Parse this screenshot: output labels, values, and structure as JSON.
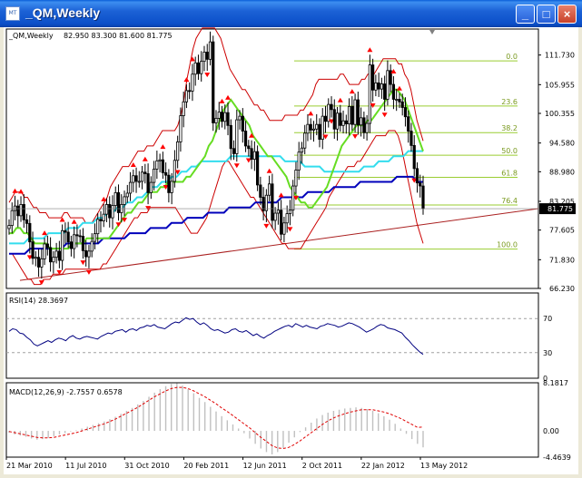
{
  "window": {
    "title": "_QM,Weekly",
    "icon": "chart-window-icon",
    "icon_caption": "MT",
    "buttons": [
      {
        "name": "minimize-button",
        "glyph": "_"
      },
      {
        "name": "maximize-button",
        "glyph": "□"
      },
      {
        "name": "close-button",
        "glyph": "×"
      }
    ]
  },
  "colors": {
    "bollinger": "#cc0000",
    "fib": "#9acd32",
    "ma_short": "#66dd22",
    "ma_mid": "#33ddee",
    "ma_long": "#0000bb",
    "candle": "#000000",
    "fractal": "#ff0000",
    "trendline": "#aa2020",
    "rsi": "#000080",
    "macd_hist": "#c0c0c0",
    "macd_signal": "#e00000",
    "price_tag_bg": "#000000",
    "price_tag_fg": "#ffffff"
  },
  "chart_data": [
    {
      "type": "candlestick",
      "title": "_QM,Weekly",
      "ohlc_label": "82.950 83.300 81.600 81.775",
      "ylim": [
        66.23,
        116.8
      ],
      "y_ticks": [
        "111.730",
        "105.955",
        "100.355",
        "94.580",
        "88.980",
        "83.205",
        "77.605",
        "71.830",
        "66.230"
      ],
      "last_price_label": "81.775",
      "last_price": 81.775,
      "x_ticks": [
        "21 Mar 2010",
        "11 Jul 2010",
        "31 Oct 2010",
        "20 Feb 2011",
        "12 Jun 2011",
        "2 Oct 2011",
        "22 Jan 2012",
        "13 May 2012"
      ],
      "fib_levels": [
        {
          "label": "0.0",
          "price": 110.6
        },
        {
          "label": "23.6",
          "price": 101.8
        },
        {
          "label": "38.2",
          "price": 96.6
        },
        {
          "label": "50.0",
          "price": 92.2
        },
        {
          "label": "61.8",
          "price": 87.9
        },
        {
          "label": "76.4",
          "price": 82.5
        },
        {
          "label": "100.0",
          "price": 73.9
        }
      ],
      "bars_close": [
        78.5,
        81.4,
        82.3,
        80.4,
        82.6,
        79.6,
        78.9,
        75.3,
        72.1,
        72.3,
        70.4,
        72.0,
        74.9,
        74.2,
        71.4,
        72.3,
        73.5,
        71.7,
        77.5,
        77.2,
        75.3,
        74.0,
        76.7,
        76.5,
        76.4,
        73.6,
        72.4,
        73.5,
        75.4,
        76.9,
        79.7,
        79.4,
        80.7,
        82.6,
        80.0,
        82.4,
        84.9,
        81.0,
        82.6,
        84.1,
        84.8,
        86.9,
        88.2,
        87.1,
        87.1,
        88.9,
        88.6,
        84.9,
        86.9,
        89.5,
        91.1,
        91.3,
        88.8,
        88.3,
        84.9,
        87.1,
        91.2,
        94.8,
        99.9,
        102.6,
        104.8,
        104.7,
        108.0,
        110.2,
        108.1,
        110.5,
        112.3,
        110.9,
        114.3,
        98.5,
        99.4,
        100.6,
        98.8,
        100.5,
        98.0,
        93.5,
        92.5,
        99.1,
        99.8,
        96.9,
        94.0,
        93.5,
        91.4,
        92.9,
        86.4,
        84.0,
        81.4,
        84.4,
        86.6,
        79.5,
        80.9,
        81.5,
        76.8,
        79.0,
        80.8,
        81.5,
        86.2,
        89.3,
        92.8,
        93.6,
        96.5,
        98.2,
        97.1,
        97.3,
        98.2,
        95.3,
        99.8,
        98.8,
        102.1,
        101.1,
        97.3,
        100.4,
        98.0,
        98.9,
        98.3,
        101.7,
        98.2,
        103.0,
        98.1,
        99.5,
        96.6,
        98.4,
        109.8,
        104.9,
        106.3,
        105.1,
        106.1,
        103.1,
        108.7,
        106.0,
        103.1,
        103.1,
        102.6,
        101.5,
        99.7,
        96.9,
        94.1,
        89.6,
        86.8,
        86.2,
        81.8
      ],
      "bollinger_upper": [
        83,
        84,
        85,
        85,
        85,
        84,
        84,
        83,
        82,
        82,
        81,
        81,
        81,
        80,
        80,
        80,
        80,
        80,
        81,
        81,
        80,
        80,
        80,
        80,
        80,
        79,
        79,
        79,
        80,
        81,
        82,
        83,
        84,
        86,
        87,
        88,
        89,
        90,
        90,
        90,
        91,
        92,
        93,
        93,
        93,
        94,
        94,
        94,
        95,
        96,
        97,
        97,
        97,
        97,
        97,
        98,
        100,
        103,
        107,
        110,
        113,
        115,
        116,
        117,
        117,
        117,
        117,
        117,
        116,
        115,
        113,
        111,
        109,
        108,
        107,
        106,
        105,
        105,
        104,
        103,
        102,
        102,
        101,
        101,
        100,
        99,
        99,
        99,
        99,
        99,
        100,
        100,
        100,
        100,
        100,
        101,
        101,
        102,
        103,
        104,
        106,
        107,
        107,
        107,
        107,
        107,
        107,
        107,
        108,
        108,
        107,
        106,
        106,
        106,
        106,
        107,
        107,
        108,
        108,
        108,
        109,
        110,
        111,
        111,
        111,
        111,
        111,
        110,
        110,
        108,
        107,
        105,
        102,
        99,
        97,
        95
      ],
      "bollinger_lower": [
        73,
        73,
        72,
        71,
        70,
        69,
        68,
        68,
        67,
        67,
        67,
        68,
        68,
        68,
        69,
        69,
        69,
        69,
        70,
        70,
        70,
        70,
        70,
        70,
        70,
        70,
        70,
        70,
        70,
        70,
        71,
        71,
        72,
        73,
        74,
        75,
        76,
        77,
        78,
        79,
        80,
        80,
        81,
        81,
        81,
        82,
        82,
        82,
        82,
        82,
        82,
        82,
        82,
        82,
        81,
        80,
        79,
        78,
        77,
        77,
        77,
        78,
        79,
        80,
        82,
        84,
        86,
        88,
        90,
        91,
        91,
        90,
        89,
        88,
        87,
        86,
        85,
        84,
        84,
        83,
        82,
        81,
        80,
        79,
        78,
        77,
        76,
        75,
        75,
        74,
        74,
        74,
        74,
        74,
        75,
        76,
        77,
        78,
        79,
        80,
        81,
        82,
        84,
        85,
        86,
        87,
        88,
        89,
        90,
        90,
        90,
        91,
        91,
        92,
        93,
        94,
        95,
        96,
        96,
        96,
        96,
        97,
        97,
        97,
        96,
        94,
        91,
        88,
        85,
        82,
        79,
        77,
        75
      ],
      "ma_short": [
        77,
        77,
        78,
        78,
        77,
        77,
        76,
        75,
        75,
        75,
        75,
        74,
        74,
        74,
        74,
        74,
        74,
        75,
        75,
        75,
        75,
        76,
        76,
        76,
        76,
        76,
        76,
        76,
        77,
        78,
        79,
        80,
        81,
        81,
        82,
        83,
        83,
        84,
        85,
        85,
        85,
        86,
        86,
        87,
        87,
        87,
        87,
        87,
        88,
        88,
        89,
        90,
        91,
        92,
        94,
        95,
        97,
        99,
        101,
        102,
        103,
        102,
        101,
        100,
        99,
        98,
        96,
        95,
        94,
        93,
        92,
        92,
        91,
        90,
        89,
        88,
        86,
        85,
        84,
        83,
        83,
        82,
        82,
        83,
        84,
        85,
        86,
        88,
        90,
        92,
        94,
        95,
        96,
        97,
        98,
        98,
        98,
        99,
        99,
        100,
        101,
        102,
        103,
        104,
        105,
        105,
        104,
        103,
        101,
        99,
        97,
        95,
        93
      ],
      "ma_mid": [
        75,
        75,
        75,
        75,
        76,
        76,
        76,
        76,
        77,
        77,
        77,
        77,
        78,
        78,
        78,
        79,
        79,
        79,
        80,
        80,
        81,
        81,
        82,
        82,
        83,
        83,
        84,
        84,
        85,
        86,
        86,
        87,
        87,
        88,
        88,
        89,
        89,
        90,
        90,
        91,
        91,
        91,
        91,
        91,
        91,
        92,
        92,
        92,
        92,
        92,
        92,
        92,
        92,
        92,
        92,
        92,
        91,
        91,
        91,
        91,
        90,
        90,
        90,
        90,
        89,
        89,
        89,
        89,
        89,
        89,
        89,
        89,
        90,
        90,
        90,
        91,
        91,
        91,
        92,
        92,
        92,
        93,
        93,
        93,
        93
      ],
      "ma_long": [
        73,
        73,
        73,
        73,
        74,
        74,
        74,
        74,
        74,
        74,
        74,
        75,
        75,
        75,
        75,
        75,
        75,
        75,
        76,
        76,
        76,
        76,
        76,
        77,
        77,
        77,
        77,
        78,
        78,
        78,
        78,
        79,
        79,
        79,
        80,
        80,
        80,
        80,
        81,
        81,
        81,
        81,
        82,
        82,
        82,
        82,
        82,
        83,
        83,
        83,
        83,
        83,
        84,
        84,
        84,
        84,
        84,
        85,
        85,
        85,
        85,
        85,
        86,
        86,
        86,
        86,
        86,
        87,
        87,
        87,
        87,
        87,
        87,
        87,
        88,
        88,
        88,
        88,
        87,
        87
      ]
    },
    {
      "type": "line",
      "title": "RSI(14) 28.3697",
      "ylim": [
        0,
        100
      ],
      "y_ticks": [
        "70",
        "30",
        "0"
      ],
      "levels": [
        70,
        30
      ],
      "values": [
        55,
        58,
        57,
        53,
        52,
        48,
        45,
        40,
        38,
        40,
        42,
        44,
        42,
        45,
        47,
        46,
        44,
        48,
        50,
        47,
        46,
        48,
        49,
        48,
        47,
        46,
        49,
        51,
        53,
        52,
        55,
        56,
        57,
        54,
        57,
        58,
        56,
        59,
        60,
        62,
        61,
        63,
        60,
        59,
        58,
        61,
        64,
        66,
        65,
        68,
        71,
        69,
        70,
        66,
        63,
        65,
        62,
        58,
        56,
        57,
        55,
        53,
        54,
        57,
        58,
        55,
        54,
        56,
        53,
        50,
        52,
        49,
        47,
        50,
        52,
        55,
        57,
        59,
        61,
        62,
        60,
        64,
        62,
        60,
        62,
        60,
        59,
        58,
        61,
        62,
        64,
        63,
        62,
        60,
        61,
        63,
        65,
        64,
        62,
        60,
        57,
        54,
        56,
        58,
        61,
        63,
        62,
        59,
        58,
        57,
        55,
        53,
        48,
        44,
        39,
        35,
        31,
        28
      ]
    },
    {
      "type": "bar",
      "title": "MACD(12,26,9) -2.7557 0.6578",
      "ylim": [
        -4.4639,
        8.1817
      ],
      "y_ticks": [
        "8.1817",
        "0.00",
        "-4.4639"
      ],
      "macd": [
        -0.3,
        -0.6,
        -0.8,
        -1.0,
        -1.3,
        -1.5,
        -1.4,
        -1.2,
        -0.9,
        -0.6,
        -0.4,
        -0.1,
        0.1,
        0.4,
        0.7,
        1.0,
        1.3,
        1.6,
        2.0,
        2.4,
        2.9,
        3.4,
        3.9,
        4.5,
        5.1,
        5.8,
        6.5,
        7.1,
        7.6,
        8.0,
        8.1,
        7.7,
        7.1,
        6.4,
        5.6,
        4.9,
        4.1,
        3.3,
        2.5,
        1.8,
        1.1,
        0.4,
        -0.4,
        -1.3,
        -2.2,
        -3.0,
        -3.6,
        -4.0,
        -3.6,
        -2.9,
        -2.0,
        -1.1,
        -0.2,
        0.6,
        1.4,
        2.1,
        2.7,
        3.1,
        3.4,
        3.6,
        3.8,
        3.9,
        4.0,
        3.9,
        3.7,
        3.4,
        3.0,
        2.5,
        1.9,
        1.2,
        0.4,
        -0.5,
        -1.4,
        -2.2,
        -2.8
      ],
      "signal": [
        -0.1,
        -0.3,
        -0.5,
        -0.7,
        -0.9,
        -1.1,
        -1.2,
        -1.2,
        -1.1,
        -0.9,
        -0.7,
        -0.5,
        -0.3,
        0.0,
        0.3,
        0.6,
        0.9,
        1.2,
        1.6,
        2.0,
        2.5,
        3.0,
        3.5,
        4.0,
        4.6,
        5.2,
        5.8,
        6.3,
        6.8,
        7.2,
        7.4,
        7.4,
        7.2,
        6.8,
        6.3,
        5.8,
        5.2,
        4.6,
        3.9,
        3.3,
        2.6,
        1.9,
        1.2,
        0.5,
        -0.3,
        -1.1,
        -1.8,
        -2.5,
        -2.9,
        -3.0,
        -2.8,
        -2.3,
        -1.7,
        -1.0,
        -0.3,
        0.4,
        1.1,
        1.7,
        2.2,
        2.6,
        2.9,
        3.2,
        3.4,
        3.6,
        3.6,
        3.6,
        3.4,
        3.2,
        2.9,
        2.5,
        2.1,
        1.6,
        1.1,
        0.6,
        0.66
      ]
    }
  ]
}
